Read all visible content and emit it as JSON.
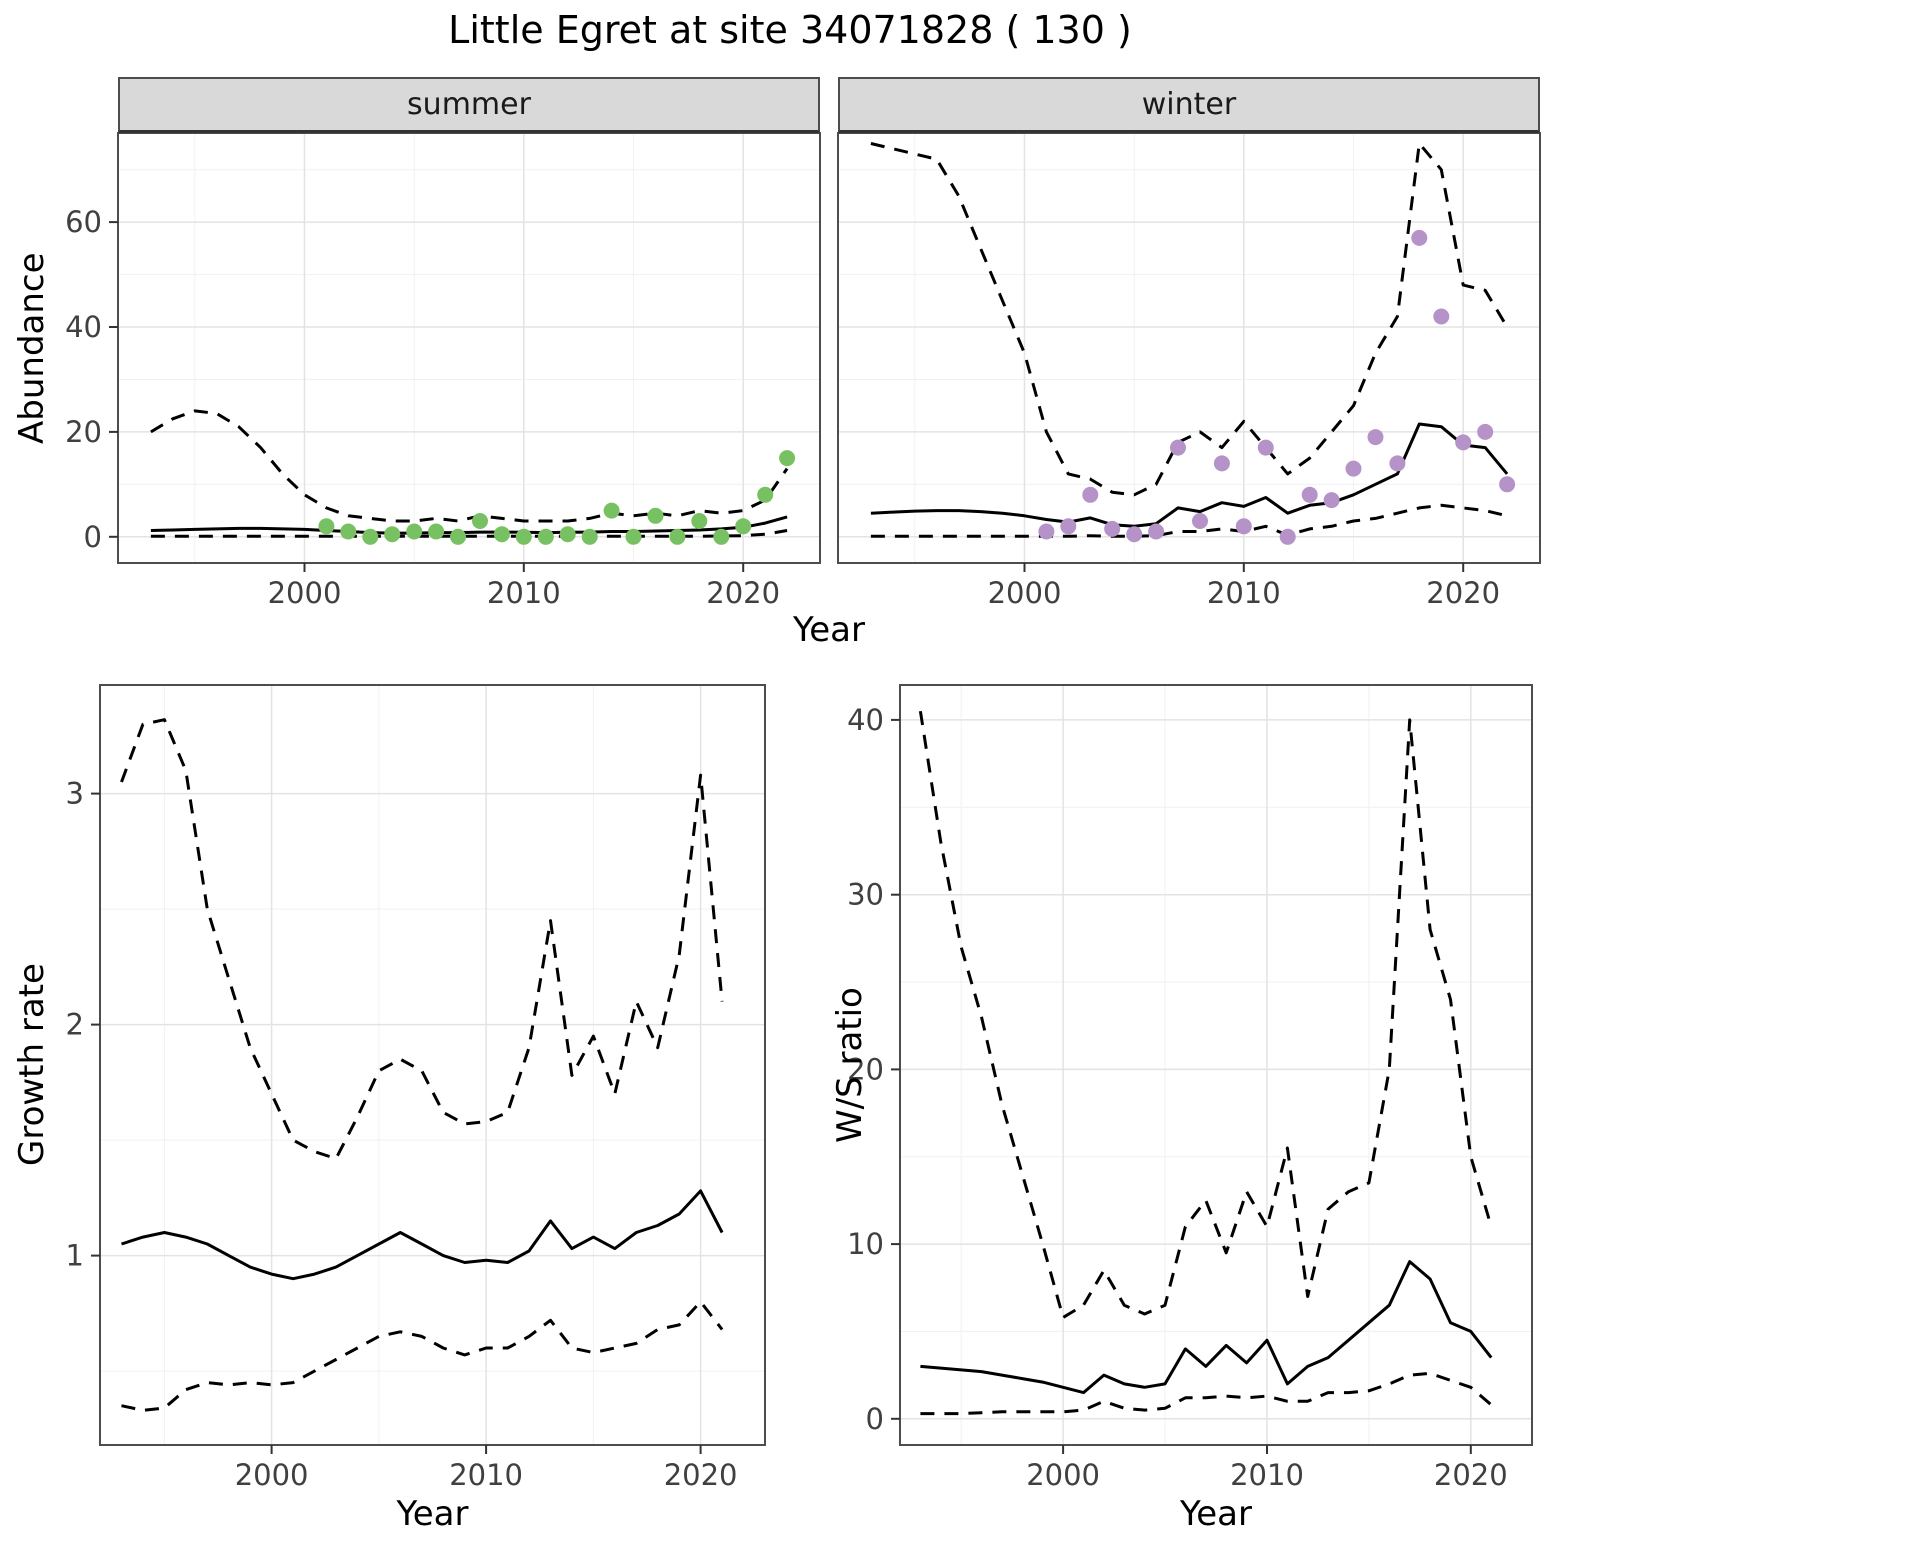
{
  "title": "Little Egret at site 34071828 ( 130 )",
  "facets": [
    "summer",
    "winter"
  ],
  "labels": {
    "year": "Year",
    "abundance": "Abundance",
    "growth_rate": "Growth rate",
    "ws_ratio": "W/S ratio"
  },
  "colors": {
    "summer_points": "#78c162",
    "winter_points": "#b592c7",
    "line": "#000000",
    "strip_bg": "#d9d9d9",
    "panel_border": "#4d4d4d",
    "grid_major": "#e3e3e3",
    "grid_minor": "#f1f1f1",
    "tick_text": "#404040"
  },
  "chart_data": [
    {
      "id": "abundance-summer",
      "type": "line",
      "facet_label": "summer",
      "xlabel": "Year",
      "ylabel": "Abundance",
      "xlim": [
        1991.5,
        2023.5
      ],
      "ylim": [
        -5,
        77
      ],
      "xticks": [
        2000,
        2010,
        2020
      ],
      "yticks": [
        0,
        20,
        40,
        60
      ],
      "x": [
        1993,
        1994,
        1995,
        1996,
        1997,
        1998,
        1999,
        2000,
        2001,
        2002,
        2003,
        2004,
        2005,
        2006,
        2007,
        2008,
        2009,
        2010,
        2011,
        2012,
        2013,
        2014,
        2015,
        2016,
        2017,
        2018,
        2019,
        2020,
        2021,
        2022
      ],
      "series": [
        {
          "name": "fitted",
          "style": "solid",
          "values": [
            1.2,
            1.3,
            1.4,
            1.5,
            1.6,
            1.6,
            1.5,
            1.4,
            1.2,
            1.0,
            0.8,
            0.7,
            0.7,
            0.8,
            0.8,
            0.9,
            0.9,
            0.85,
            0.8,
            0.85,
            0.9,
            1.0,
            1.0,
            1.1,
            1.2,
            1.3,
            1.5,
            1.8,
            2.6,
            3.8
          ]
        },
        {
          "name": "upper-ci",
          "style": "dashed",
          "values": [
            20,
            22.5,
            24,
            23.5,
            21,
            17,
            12,
            8,
            5.5,
            4,
            3.5,
            3,
            3,
            3.5,
            3,
            4,
            3.5,
            3,
            3,
            3,
            3.5,
            4.5,
            4,
            4.5,
            4,
            5,
            4.5,
            5,
            7,
            13
          ]
        },
        {
          "name": "lower-ci",
          "style": "dashed",
          "values": [
            0.1,
            0.1,
            0.1,
            0.1,
            0.1,
            0.1,
            0.1,
            0.1,
            0.1,
            0.1,
            0.1,
            0.1,
            0.1,
            0.1,
            0.1,
            0.1,
            0.1,
            0.1,
            0.1,
            0.1,
            0.1,
            0.1,
            0.1,
            0.1,
            0.1,
            0.1,
            0.15,
            0.2,
            0.5,
            1.2
          ]
        }
      ],
      "points": {
        "name": "observed",
        "color": "#78c162",
        "x": [
          2001,
          2002,
          2003,
          2004,
          2005,
          2006,
          2007,
          2008,
          2009,
          2010,
          2011,
          2012,
          2013,
          2014,
          2015,
          2016,
          2017,
          2018,
          2019,
          2020,
          2021,
          2022
        ],
        "y": [
          2,
          1,
          0,
          0.5,
          1,
          1,
          0,
          3,
          0.5,
          0,
          0,
          0.5,
          0,
          5,
          0,
          4,
          0,
          3,
          0,
          2,
          8,
          15
        ]
      }
    },
    {
      "id": "abundance-winter",
      "type": "line",
      "facet_label": "winter",
      "xlabel": "Year",
      "ylabel": "Abundance",
      "xlim": [
        1991.5,
        2023.5
      ],
      "ylim": [
        -5,
        77
      ],
      "xticks": [
        2000,
        2010,
        2020
      ],
      "yticks": [
        0,
        20,
        40,
        60
      ],
      "x": [
        1993,
        1994,
        1995,
        1996,
        1997,
        1998,
        1999,
        2000,
        2001,
        2002,
        2003,
        2004,
        2005,
        2006,
        2007,
        2008,
        2009,
        2010,
        2011,
        2012,
        2013,
        2014,
        2015,
        2016,
        2017,
        2018,
        2019,
        2020,
        2021,
        2022
      ],
      "series": [
        {
          "name": "fitted",
          "style": "solid",
          "values": [
            4.5,
            4.7,
            4.9,
            5.0,
            5.0,
            4.8,
            4.5,
            4.0,
            3.3,
            2.8,
            3.6,
            2.3,
            2.0,
            2.5,
            5.5,
            4.8,
            6.5,
            5.8,
            7.5,
            4.5,
            6.0,
            6.5,
            8.0,
            10.0,
            12.0,
            21.5,
            21.0,
            17.5,
            17.0,
            12.0
          ]
        },
        {
          "name": "upper-ci",
          "style": "dashed",
          "values": [
            75,
            74,
            73,
            72,
            65,
            55,
            45,
            35,
            20,
            12,
            11,
            8.5,
            8,
            10,
            18,
            20,
            17,
            22,
            17,
            12,
            15,
            20,
            25,
            35,
            42,
            75,
            70,
            48,
            47,
            40
          ]
        },
        {
          "name": "lower-ci",
          "style": "dashed",
          "values": [
            0.1,
            0.1,
            0.1,
            0.1,
            0.1,
            0.1,
            0.1,
            0.1,
            0.1,
            0.1,
            0.2,
            0.1,
            0.1,
            0.2,
            1.0,
            1.0,
            1.5,
            1.0,
            2.0,
            0.3,
            1.5,
            2.0,
            3.0,
            3.5,
            4.5,
            5.5,
            6.0,
            5.5,
            5.0,
            4.0
          ]
        }
      ],
      "points": {
        "name": "observed",
        "color": "#b592c7",
        "x": [
          2001,
          2002,
          2003,
          2004,
          2005,
          2006,
          2007,
          2008,
          2009,
          2010,
          2011,
          2012,
          2013,
          2014,
          2015,
          2016,
          2017,
          2018,
          2019,
          2020,
          2021,
          2022
        ],
        "y": [
          1,
          2,
          8,
          1.5,
          0.5,
          1,
          17,
          3,
          14,
          2,
          17,
          0,
          8,
          7,
          13,
          19,
          14,
          57,
          42,
          18,
          20,
          10
        ]
      }
    },
    {
      "id": "growth-rate",
      "type": "line",
      "xlabel": "Year",
      "ylabel": "Growth rate",
      "xlim": [
        1992,
        2023
      ],
      "ylim": [
        0.18,
        3.47
      ],
      "xticks": [
        2000,
        2010,
        2020
      ],
      "yticks": [
        1,
        2,
        3
      ],
      "x": [
        1993,
        1994,
        1995,
        1996,
        1997,
        1998,
        1999,
        2000,
        2001,
        2002,
        2003,
        2004,
        2005,
        2006,
        2007,
        2008,
        2009,
        2010,
        2011,
        2012,
        2013,
        2014,
        2015,
        2016,
        2017,
        2018,
        2019,
        2020,
        2021
      ],
      "series": [
        {
          "name": "fitted",
          "style": "solid",
          "values": [
            1.05,
            1.08,
            1.1,
            1.08,
            1.05,
            1.0,
            0.95,
            0.92,
            0.9,
            0.92,
            0.95,
            1.0,
            1.05,
            1.1,
            1.05,
            1.0,
            0.97,
            0.98,
            0.97,
            1.02,
            1.15,
            1.03,
            1.08,
            1.03,
            1.1,
            1.13,
            1.18,
            1.28,
            1.1
          ]
        },
        {
          "name": "upper-ci",
          "style": "dashed",
          "values": [
            3.05,
            3.3,
            3.32,
            3.1,
            2.5,
            2.2,
            1.9,
            1.7,
            1.5,
            1.45,
            1.42,
            1.6,
            1.8,
            1.85,
            1.8,
            1.62,
            1.57,
            1.58,
            1.62,
            1.9,
            2.45,
            1.78,
            1.95,
            1.7,
            2.1,
            1.9,
            2.3,
            3.08,
            2.1
          ]
        },
        {
          "name": "lower-ci",
          "style": "dashed",
          "values": [
            0.35,
            0.33,
            0.34,
            0.42,
            0.45,
            0.44,
            0.45,
            0.44,
            0.45,
            0.5,
            0.55,
            0.6,
            0.65,
            0.67,
            0.65,
            0.6,
            0.57,
            0.6,
            0.6,
            0.65,
            0.72,
            0.6,
            0.58,
            0.6,
            0.62,
            0.68,
            0.7,
            0.8,
            0.68
          ]
        }
      ]
    },
    {
      "id": "ws-ratio",
      "type": "line",
      "xlabel": "Year",
      "ylabel": "W/S ratio",
      "xlim": [
        1992,
        2023
      ],
      "ylim": [
        -1.5,
        42
      ],
      "xticks": [
        2000,
        2010,
        2020
      ],
      "yticks": [
        0,
        10,
        20,
        30,
        40
      ],
      "x": [
        1993,
        1994,
        1995,
        1996,
        1997,
        1998,
        1999,
        2000,
        2001,
        2002,
        2003,
        2004,
        2005,
        2006,
        2007,
        2008,
        2009,
        2010,
        2011,
        2012,
        2013,
        2014,
        2015,
        2016,
        2017,
        2018,
        2019,
        2020,
        2021
      ],
      "series": [
        {
          "name": "fitted",
          "style": "solid",
          "values": [
            3.0,
            2.9,
            2.8,
            2.7,
            2.5,
            2.3,
            2.1,
            1.8,
            1.5,
            2.5,
            2.0,
            1.8,
            2.0,
            4.0,
            3.0,
            4.2,
            3.2,
            4.5,
            2.0,
            3.0,
            3.5,
            4.5,
            5.5,
            6.5,
            9.0,
            8.0,
            5.5,
            5.0,
            3.5
          ]
        },
        {
          "name": "upper-ci",
          "style": "dashed",
          "values": [
            40.5,
            33,
            27,
            23,
            18,
            14,
            10,
            5.8,
            6.5,
            8.5,
            6.5,
            6.0,
            6.5,
            11,
            12.5,
            9.5,
            13,
            11,
            15.5,
            7,
            12,
            13,
            13.5,
            20,
            40,
            28,
            24,
            15,
            11
          ]
        },
        {
          "name": "lower-ci",
          "style": "dashed",
          "values": [
            0.3,
            0.3,
            0.3,
            0.35,
            0.4,
            0.4,
            0.4,
            0.4,
            0.5,
            1.0,
            0.6,
            0.5,
            0.6,
            1.2,
            1.2,
            1.3,
            1.2,
            1.3,
            1.0,
            1.0,
            1.5,
            1.5,
            1.6,
            2.0,
            2.5,
            2.6,
            2.2,
            1.8,
            0.8
          ]
        }
      ]
    }
  ]
}
